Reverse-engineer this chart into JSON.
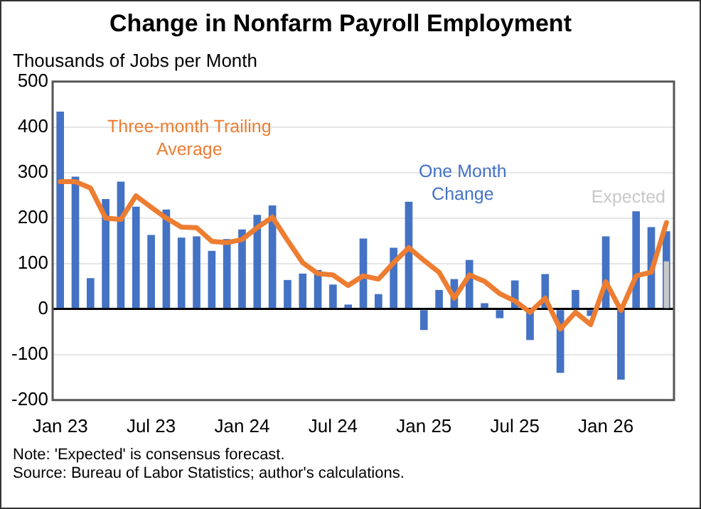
{
  "chart_data": {
    "type": "bar",
    "title": "Change in Nonfarm Payroll Employment",
    "ylabel": "Thousands of Jobs per Month",
    "categories": [
      "Jan 23",
      null,
      null,
      null,
      null,
      null,
      "Jul 23",
      null,
      null,
      null,
      null,
      null,
      "Jan 24",
      null,
      null,
      null,
      null,
      null,
      "Jul 24",
      null,
      null,
      null,
      null,
      null,
      "Jan 25",
      null,
      null,
      null,
      null,
      null,
      "Jul 25",
      null,
      null,
      null,
      null,
      null,
      "Jan 26",
      null,
      null,
      null,
      null
    ],
    "series": [
      {
        "name": "One Month Change",
        "color": "#4472c4",
        "values": [
          434,
          291,
          68,
          242,
          280,
          225,
          163,
          219,
          157,
          160,
          128,
          154,
          175,
          207,
          228,
          64,
          78,
          86,
          54,
          10,
          155,
          33,
          135,
          236,
          -46,
          42,
          66,
          108,
          13,
          -20,
          63,
          -68,
          77,
          -140,
          42,
          -15,
          160,
          -155,
          215,
          180,
          171
        ]
      },
      {
        "name": "Expected",
        "color": "#c8c8c8",
        "values": [
          null,
          null,
          null,
          null,
          null,
          null,
          null,
          null,
          null,
          null,
          null,
          null,
          null,
          null,
          null,
          null,
          null,
          null,
          null,
          null,
          null,
          null,
          null,
          null,
          null,
          null,
          null,
          null,
          null,
          null,
          null,
          null,
          null,
          null,
          null,
          null,
          null,
          null,
          null,
          null,
          105
        ]
      },
      {
        "name": "Three-month Trailing Average",
        "type": "line",
        "color": "#ed7d31",
        "values": [
          280,
          280,
          266,
          200,
          197,
          249,
          224,
          200,
          180,
          179,
          149,
          146,
          153,
          179,
          202,
          151,
          102,
          78,
          75,
          52,
          73,
          66,
          102,
          135,
          107,
          81,
          24,
          75,
          61,
          34,
          18,
          -7,
          24,
          -44,
          -7,
          -34,
          60,
          -3,
          73,
          81,
          190
        ]
      }
    ],
    "ylim": [
      -200,
      500
    ],
    "yticks": [
      -200,
      -100,
      0,
      100,
      200,
      300,
      400,
      500
    ],
    "grid": "y",
    "legend": false,
    "marker": "none",
    "annotations": [
      "Note: 'Expected' is consensus forecast.",
      "Source: Bureau of Labor Statistics; author's calculations."
    ]
  }
}
